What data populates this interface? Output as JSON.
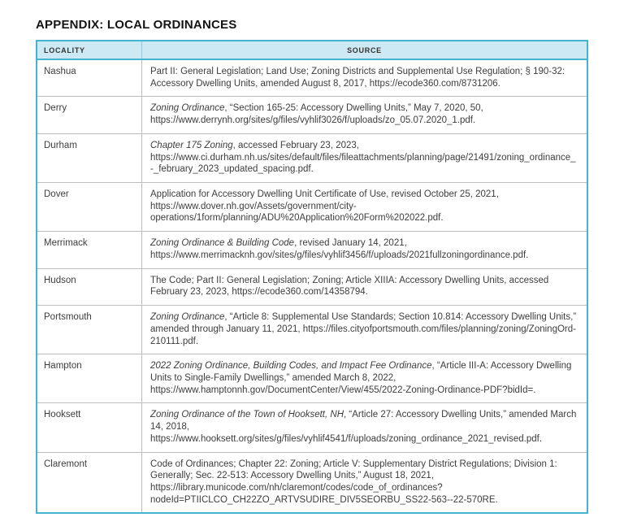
{
  "page": {
    "title": "APPENDIX: LOCAL ORDINANCES"
  },
  "colors": {
    "accent": "#45b4d1",
    "header-bg": "#cde9f3"
  },
  "table": {
    "header": {
      "locality": "LOCALITY",
      "source": "SOURCE"
    },
    "rows": [
      {
        "locality": "Nashua",
        "source": [
          {
            "italic": false,
            "text": "Part II: General Legislation; Land Use; Zoning Districts and Supplemental Use Regulation; § 190-32: Accessory Dwelling Units, amended August 8, 2017, https://ecode360.com/8731206."
          }
        ]
      },
      {
        "locality": "Derry",
        "source": [
          {
            "italic": true,
            "text": "Zoning Ordinance"
          },
          {
            "italic": false,
            "text": ", “Section 165-25: Accessory Dwelling Units,” May 7, 2020, 50, https://www.derrynh.org/sites/g/files/vyhlif3026/f/uploads/zo_05.07.2020_1.pdf."
          }
        ]
      },
      {
        "locality": "Durham",
        "source": [
          {
            "italic": true,
            "text": "Chapter 175 Zoning"
          },
          {
            "italic": false,
            "text": ", accessed February 23, 2023, https://www.ci.durham.nh.us/sites/default/files/fileattachments/planning/page/21491/zoning_ordinance_-_february_2023_updated_spacing.pdf."
          }
        ]
      },
      {
        "locality": "Dover",
        "source": [
          {
            "italic": false,
            "text": "Application for Accessory Dwelling Unit Certificate of Use, revised October 25, 2021, https://www.dover.nh.gov/Assets/government/city-operations/1form/planning/ADU%20Application%20Form%202022.pdf."
          }
        ]
      },
      {
        "locality": "Merrimack",
        "source": [
          {
            "italic": true,
            "text": "Zoning Ordinance & Building Code"
          },
          {
            "italic": false,
            "text": ", revised January 14, 2021, https://www.merrimacknh.gov/sites/g/files/vyhlif3456/f/uploads/2021fullzoningordinance.pdf."
          }
        ]
      },
      {
        "locality": "Hudson",
        "source": [
          {
            "italic": false,
            "text": "The Code; Part II: General Legislation; Zoning; Article XIIIA: Accessory Dwelling Units, accessed February 23, 2023, https://ecode360.com/14358794."
          }
        ]
      },
      {
        "locality": "Portsmouth",
        "source": [
          {
            "italic": true,
            "text": "Zoning Ordinance"
          },
          {
            "italic": false,
            "text": ", “Article 8: Supplemental Use Standards; Section 10.814: Accessory Dwelling Units,” amended through January 11, 2021, https://files.cityofportsmouth.com/files/planning/zoning/ZoningOrd-210111.pdf."
          }
        ]
      },
      {
        "locality": "Hampton",
        "source": [
          {
            "italic": true,
            "text": "2022 Zoning Ordinance, Building Codes, and Impact Fee Ordinance"
          },
          {
            "italic": false,
            "text": ", “Article III-A: Accessory Dwelling Units to Single-Family Dwellings,” amended March 8, 2022, https://www.hamptonnh.gov/DocumentCenter/View/455/2022-Zoning-Ordinance-PDF?bidId=."
          }
        ]
      },
      {
        "locality": "Hooksett",
        "source": [
          {
            "italic": true,
            "text": "Zoning Ordinance of the Town of Hooksett, NH"
          },
          {
            "italic": false,
            "text": ", “Article 27: Accessory Dwelling Units,” amended March 14, 2018, https://www.hooksett.org/sites/g/files/vyhlif4541/f/uploads/zoning_ordinance_2021_revised.pdf."
          }
        ]
      },
      {
        "locality": "Claremont",
        "source": [
          {
            "italic": false,
            "text": "Code of Ordinances; Chapter 22: Zoning; Article V: Supplementary District Regulations; Division 1: Generally; Sec. 22-513: Accessory Dwelling Units,” August 18, 2021, https://library.municode.com/nh/claremont/codes/code_of_ordinances?nodeId=PTIICLCO_CH22ZO_ARTVSUDIRE_DIV5SEORBU_SS22-563--22-570RE."
          }
        ]
      }
    ]
  }
}
